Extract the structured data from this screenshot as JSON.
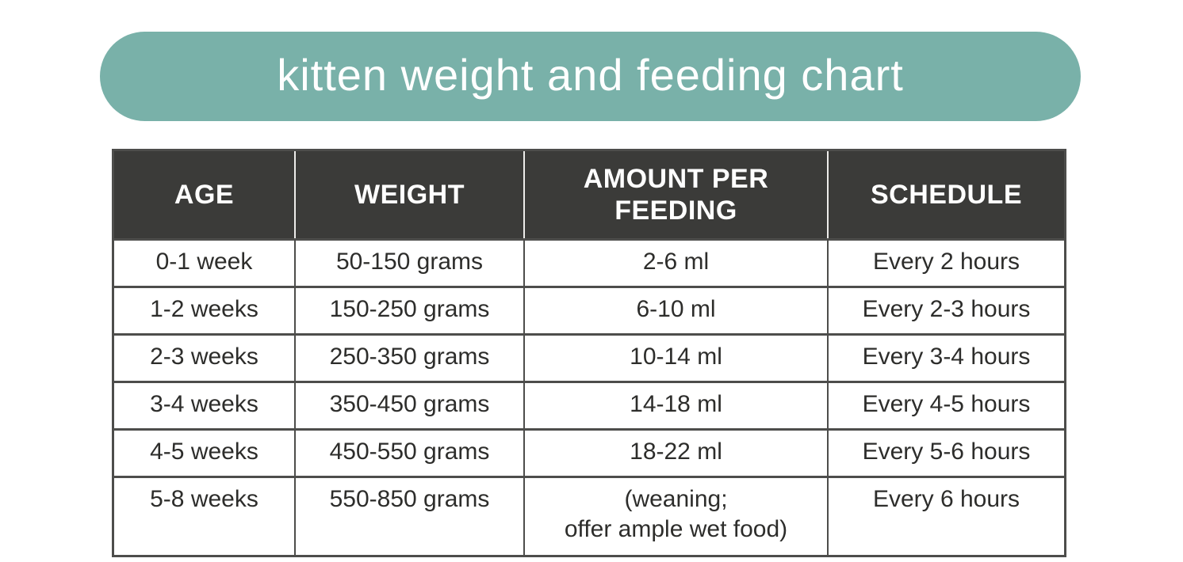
{
  "banner": {
    "title": "kitten weight and feeding chart",
    "bg_color": "#79b1a9",
    "text_color": "#ffffff"
  },
  "table": {
    "headers": [
      "AGE",
      "WEIGHT",
      "AMOUNT PER\nFEEDING",
      "SCHEDULE"
    ],
    "rows": [
      [
        "0-1 week",
        "50-150 grams",
        "2-6 ml",
        "Every 2 hours"
      ],
      [
        "1-2 weeks",
        "150-250 grams",
        "6-10 ml",
        "Every 2-3 hours"
      ],
      [
        "2-3 weeks",
        "250-350 grams",
        "10-14 ml",
        "Every 3-4 hours"
      ],
      [
        "3-4 weeks",
        "350-450 grams",
        "14-18 ml",
        "Every 4-5 hours"
      ],
      [
        "4-5 weeks",
        "450-550 grams",
        "18-22 ml",
        "Every 5-6 hours"
      ],
      [
        "5-8 weeks",
        "550-850 grams",
        "(weaning;\noffer ample wet food)",
        "Every 6 hours"
      ]
    ],
    "colors": {
      "header_bg": "#3b3b39",
      "header_text": "#ffffff",
      "header_divider": "#edecea",
      "border": "#4d4d4b",
      "body_bg": "#ffffff",
      "body_text": "#2d2d2b"
    }
  },
  "chart_data": {
    "type": "table",
    "title": "kitten weight and feeding chart",
    "columns": [
      "AGE",
      "WEIGHT",
      "AMOUNT PER FEEDING",
      "SCHEDULE"
    ],
    "rows": [
      {
        "age": "0-1 week",
        "weight_grams": [
          50,
          150
        ],
        "amount_per_feeding_ml": [
          2,
          6
        ],
        "schedule": "Every 2 hours"
      },
      {
        "age": "1-2 weeks",
        "weight_grams": [
          150,
          250
        ],
        "amount_per_feeding_ml": [
          6,
          10
        ],
        "schedule": "Every 2-3 hours"
      },
      {
        "age": "2-3 weeks",
        "weight_grams": [
          250,
          350
        ],
        "amount_per_feeding_ml": [
          10,
          14
        ],
        "schedule": "Every 3-4 hours"
      },
      {
        "age": "3-4 weeks",
        "weight_grams": [
          350,
          450
        ],
        "amount_per_feeding_ml": [
          14,
          18
        ],
        "schedule": "Every 4-5 hours"
      },
      {
        "age": "4-5 weeks",
        "weight_grams": [
          450,
          550
        ],
        "amount_per_feeding_ml": [
          18,
          22
        ],
        "schedule": "Every 5-6 hours"
      },
      {
        "age": "5-8 weeks",
        "weight_grams": [
          550,
          850
        ],
        "amount_per_feeding_ml": "(weaning; offer ample wet food)",
        "schedule": "Every 6 hours"
      }
    ]
  }
}
